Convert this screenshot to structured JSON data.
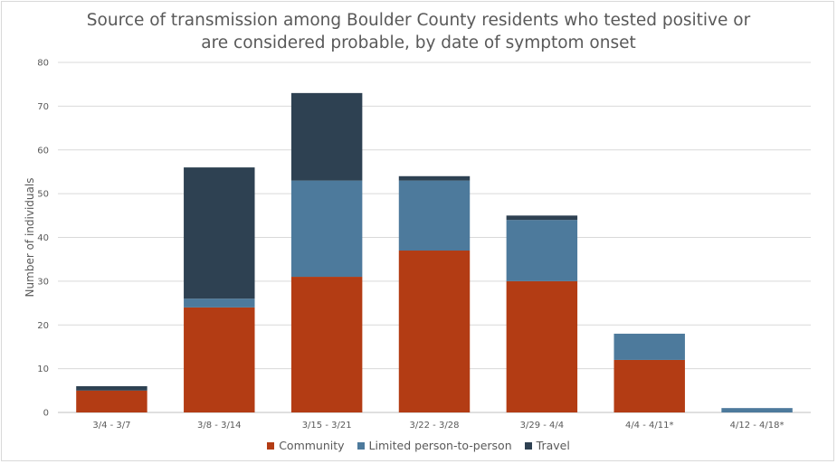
{
  "colors": {
    "community": "#b33c14",
    "limited": "#4d7a9c",
    "travel": "#2e4152",
    "grid": "#d9d9d9",
    "text": "#595959"
  },
  "chart_data": {
    "type": "bar",
    "stacked": true,
    "title_line1": "Source of transmission among Boulder County residents who tested positive or",
    "title_line2": "are considered probable, by date of symptom onset",
    "xlabel": "",
    "ylabel": "Number of individuals",
    "ylim": [
      0,
      80
    ],
    "yticks": [
      0,
      10,
      20,
      30,
      40,
      50,
      60,
      70,
      80
    ],
    "grid": true,
    "legend_position": "bottom",
    "categories": [
      "3/4 - 3/7",
      "3/8 - 3/14",
      "3/15 - 3/21",
      "3/22 - 3/28",
      "3/29 - 4/4",
      "4/4 - 4/11*",
      "4/12 - 4/18*"
    ],
    "series": [
      {
        "name": "Community",
        "color": "#b33c14",
        "values": [
          5,
          24,
          31,
          37,
          30,
          12,
          0
        ]
      },
      {
        "name": "Limited person-to-person",
        "color": "#4d7a9c",
        "values": [
          0,
          2,
          22,
          16,
          14,
          6,
          1
        ]
      },
      {
        "name": "Travel",
        "color": "#2e4152",
        "values": [
          1,
          30,
          20,
          1,
          1,
          0,
          0
        ]
      }
    ]
  }
}
